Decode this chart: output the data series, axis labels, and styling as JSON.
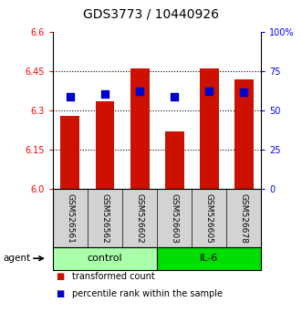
{
  "title": "GDS3773 / 10440926",
  "samples": [
    "GSM526561",
    "GSM526562",
    "GSM526602",
    "GSM526603",
    "GSM526605",
    "GSM526678"
  ],
  "red_values": [
    6.28,
    6.335,
    6.46,
    6.22,
    6.46,
    6.42
  ],
  "blue_values": [
    6.355,
    6.365,
    6.375,
    6.355,
    6.375,
    6.37
  ],
  "ylim_left": [
    6.0,
    6.6
  ],
  "yticks_left": [
    6.0,
    6.15,
    6.3,
    6.45,
    6.6
  ],
  "yticks_right": [
    0,
    25,
    50,
    75,
    100
  ],
  "yticklabels_right": [
    "0",
    "25",
    "50",
    "75",
    "100%"
  ],
  "group_labels": [
    "control",
    "IL-6"
  ],
  "group_colors": [
    "#AAFFAA",
    "#00DD00"
  ],
  "bar_color": "#CC1100",
  "dot_color": "#0000CC",
  "bar_base": 6.0,
  "bar_width": 0.55,
  "dot_size": 28,
  "legend_red_label": "transformed count",
  "legend_blue_label": "percentile rank within the sample",
  "agent_label": "agent",
  "background_color": "#ffffff",
  "title_fontsize": 10,
  "tick_fontsize": 7,
  "sample_fontsize": 6.5,
  "group_fontsize": 8,
  "legend_fontsize": 7
}
